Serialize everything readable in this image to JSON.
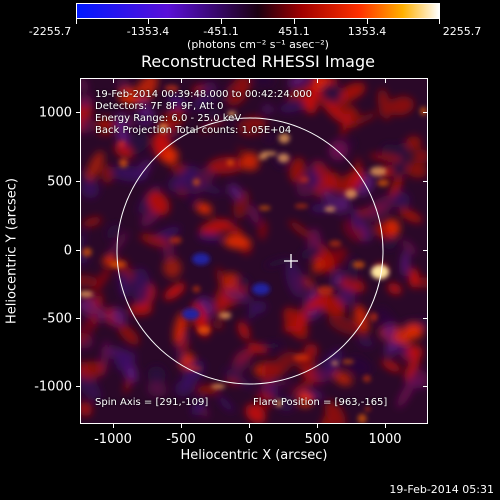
{
  "colorbar": {
    "ticks": [
      "-2255.7",
      "-1353.4",
      "-451.1",
      "451.1",
      "1353.4",
      "2255.7"
    ],
    "unit": "(photons cm⁻² s⁻¹ asec⁻²)"
  },
  "title": "Reconstructed RHESSI Image",
  "info": {
    "time_range": "19-Feb-2014 00:39:48.000 to 00:42:24.000",
    "detectors": "Detectors: 7F 8F 9F, Att 0",
    "energy": "Energy Range: 6.0 - 25.0 keV",
    "method": "Back Projection    Total counts: 1.05E+04",
    "spin_axis": "Spin Axis = [291,-109]",
    "flare_position": "Flare Position = [963,-165]"
  },
  "axes": {
    "xlabel": "Heliocentric X (arcsec)",
    "ylabel": "Heliocentric Y (arcsec)",
    "x_ticks": [
      "-1000",
      "-500",
      "0",
      "500",
      "1000"
    ],
    "y_ticks": [
      "1000",
      "500",
      "0",
      "-500",
      "-1000"
    ]
  },
  "timestamp": "19-Feb-2014 05:31"
}
